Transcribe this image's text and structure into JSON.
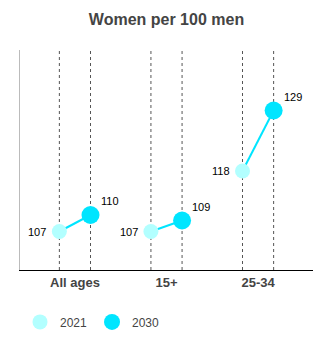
{
  "chart_data": {
    "type": "dumbbell",
    "title": "Women per 100 men",
    "categories": [
      "All ages",
      "15+",
      "25-34"
    ],
    "series": [
      {
        "name": "2021",
        "color": "#b2ffff",
        "values": [
          107,
          107,
          118
        ]
      },
      {
        "name": "2030",
        "color": "#00e5ff",
        "values": [
          110,
          109,
          129
        ]
      }
    ],
    "color": "#00e5ff",
    "ylim": [
      100,
      140
    ],
    "tick_labels": "x",
    "data_labels": true,
    "legend": "bottom"
  }
}
